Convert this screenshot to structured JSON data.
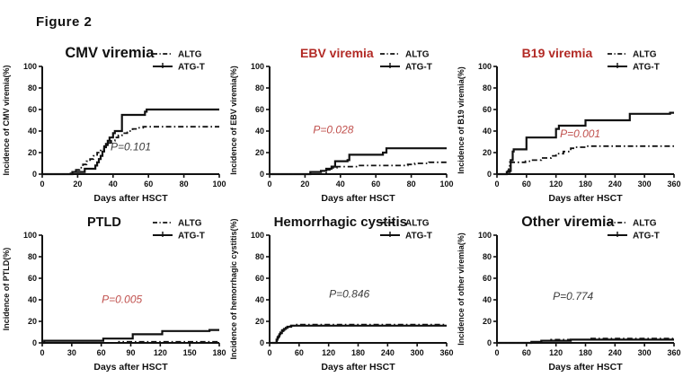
{
  "figure_label": "Figure 2",
  "legend_labels": {
    "altg": "ALTG",
    "atgt": "ATG-T"
  },
  "colors": {
    "ink": "#111111",
    "red_title": "#b22a25",
    "red_p": "#c0504d",
    "gray_p": "#3d3d3d"
  },
  "chart_data": [
    {
      "type": "line",
      "title": "CMV viremia",
      "title_color": "#111111",
      "title_size": 16.5,
      "title_fx": 0.38,
      "p_label": "P=0.101",
      "p_color": "#3d3d3d",
      "p_fx": 0.5,
      "p_fy": 0.22,
      "xlabel": "Days after HSCT",
      "ylabel": "Incidence of CMV viremia(%)",
      "xlim": [
        0,
        100
      ],
      "ylim": [
        0,
        100
      ],
      "xticks": [
        0,
        20,
        40,
        60,
        80,
        100
      ],
      "yticks": [
        0,
        20,
        40,
        60,
        80,
        100
      ],
      "series": [
        {
          "name": "ATG-T",
          "style": "solid",
          "points": [
            [
              0,
              0
            ],
            [
              16,
              0
            ],
            [
              17,
              2
            ],
            [
              23,
              2
            ],
            [
              24,
              5
            ],
            [
              29,
              5
            ],
            [
              30,
              8
            ],
            [
              31,
              11
            ],
            [
              32,
              14
            ],
            [
              33,
              17
            ],
            [
              34,
              21
            ],
            [
              35,
              25
            ],
            [
              36,
              28
            ],
            [
              37,
              31
            ],
            [
              38,
              34
            ],
            [
              40,
              38
            ],
            [
              41,
              40
            ],
            [
              44,
              40
            ],
            [
              45,
              55
            ],
            [
              57,
              55
            ],
            [
              58,
              58
            ],
            [
              59,
              60
            ],
            [
              100,
              60
            ]
          ]
        },
        {
          "name": "ALTG",
          "style": "dashed",
          "points": [
            [
              0,
              0
            ],
            [
              15,
              0
            ],
            [
              16,
              2
            ],
            [
              19,
              4
            ],
            [
              21,
              6
            ],
            [
              23,
              9
            ],
            [
              25,
              12
            ],
            [
              27,
              14
            ],
            [
              29,
              17
            ],
            [
              31,
              20
            ],
            [
              33,
              23
            ],
            [
              35,
              26
            ],
            [
              37,
              29
            ],
            [
              39,
              31
            ],
            [
              41,
              34
            ],
            [
              43,
              36
            ],
            [
              45,
              38
            ],
            [
              48,
              40
            ],
            [
              51,
              42
            ],
            [
              54,
              43
            ],
            [
              57,
              44
            ],
            [
              100,
              44
            ]
          ]
        }
      ]
    },
    {
      "type": "line",
      "title": "EBV viremia",
      "title_color": "#b22a25",
      "title_size": 14,
      "title_fx": 0.38,
      "p_label": "P=0.028",
      "p_color": "#c0504d",
      "p_fx": 0.36,
      "p_fy": 0.38,
      "xlabel": "Days after HSCT",
      "ylabel": "Incidence of EBV viremia(%)",
      "xlim": [
        0,
        100
      ],
      "ylim": [
        0,
        100
      ],
      "xticks": [
        0,
        20,
        40,
        60,
        80,
        100
      ],
      "yticks": [
        0,
        20,
        40,
        60,
        80,
        100
      ],
      "series": [
        {
          "name": "ATG-T",
          "style": "solid",
          "points": [
            [
              0,
              0
            ],
            [
              22,
              0
            ],
            [
              23,
              2
            ],
            [
              28,
              2
            ],
            [
              29,
              3
            ],
            [
              31,
              3
            ],
            [
              32,
              5
            ],
            [
              34,
              5
            ],
            [
              35,
              7
            ],
            [
              36,
              7
            ],
            [
              37,
              12
            ],
            [
              43,
              12
            ],
            [
              44,
              13
            ],
            [
              45,
              18
            ],
            [
              63,
              18
            ],
            [
              64,
              20
            ],
            [
              66,
              24
            ],
            [
              100,
              24
            ]
          ]
        },
        {
          "name": "ALTG",
          "style": "dashed",
          "points": [
            [
              0,
              0
            ],
            [
              30,
              0
            ],
            [
              32,
              4
            ],
            [
              34,
              5
            ],
            [
              36,
              6
            ],
            [
              38,
              7
            ],
            [
              48,
              7
            ],
            [
              50,
              8
            ],
            [
              74,
              8
            ],
            [
              78,
              9
            ],
            [
              82,
              10
            ],
            [
              90,
              11
            ],
            [
              100,
              11
            ]
          ]
        }
      ]
    },
    {
      "type": "line",
      "title": "B19 viremia",
      "title_color": "#b22a25",
      "title_size": 14,
      "title_fx": 0.34,
      "p_label": "P=0.001",
      "p_color": "#c0504d",
      "p_fx": 0.47,
      "p_fy": 0.34,
      "xlabel": "Days after HSCT",
      "ylabel": "Incidence of B19 viremia(%)",
      "xlim": [
        0,
        360
      ],
      "ylim": [
        0,
        100
      ],
      "xticks": [
        0,
        60,
        120,
        180,
        240,
        300,
        360
      ],
      "yticks": [
        0,
        20,
        40,
        60,
        80,
        100
      ],
      "series": [
        {
          "name": "ATG-T",
          "style": "solid",
          "points": [
            [
              0,
              0
            ],
            [
              18,
              0
            ],
            [
              20,
              2
            ],
            [
              25,
              2
            ],
            [
              26,
              3
            ],
            [
              27,
              3
            ],
            [
              28,
              13
            ],
            [
              31,
              13
            ],
            [
              32,
              21
            ],
            [
              33,
              21
            ],
            [
              34,
              23
            ],
            [
              58,
              23
            ],
            [
              60,
              34
            ],
            [
              118,
              34
            ],
            [
              120,
              42
            ],
            [
              124,
              42
            ],
            [
              126,
              45
            ],
            [
              178,
              45
            ],
            [
              180,
              50
            ],
            [
              266,
              50
            ],
            [
              270,
              56
            ],
            [
              350,
              56
            ],
            [
              352,
              57
            ],
            [
              360,
              57
            ]
          ]
        },
        {
          "name": "ALTG",
          "style": "dashed",
          "points": [
            [
              0,
              0
            ],
            [
              20,
              0
            ],
            [
              22,
              3
            ],
            [
              24,
              7
            ],
            [
              26,
              11
            ],
            [
              56,
              11
            ],
            [
              58,
              12
            ],
            [
              68,
              12
            ],
            [
              70,
              13
            ],
            [
              88,
              13
            ],
            [
              90,
              15
            ],
            [
              108,
              15
            ],
            [
              110,
              17
            ],
            [
              118,
              17
            ],
            [
              120,
              19
            ],
            [
              133,
              19
            ],
            [
              135,
              21
            ],
            [
              148,
              21
            ],
            [
              150,
              24
            ],
            [
              158,
              24
            ],
            [
              160,
              25
            ],
            [
              178,
              25
            ],
            [
              180,
              26
            ],
            [
              360,
              26
            ]
          ]
        }
      ]
    },
    {
      "type": "line",
      "title": "PTLD",
      "title_color": "#111111",
      "title_size": 14.5,
      "title_fx": 0.35,
      "p_label": "P=0.005",
      "p_color": "#c0504d",
      "p_fx": 0.45,
      "p_fy": 0.37,
      "xlabel": "Days after HSCT",
      "ylabel": "Incidence of PTLD(%)",
      "xlim": [
        0,
        180
      ],
      "ylim": [
        0,
        100
      ],
      "xticks": [
        0,
        30,
        60,
        90,
        120,
        150,
        180
      ],
      "yticks": [
        0,
        20,
        40,
        60,
        80,
        100
      ],
      "series": [
        {
          "name": "ATG-T",
          "style": "solid",
          "points": [
            [
              0,
              0
            ],
            [
              2,
              2
            ],
            [
              60,
              2
            ],
            [
              62,
              4
            ],
            [
              90,
              4
            ],
            [
              92,
              8
            ],
            [
              120,
              8
            ],
            [
              122,
              11
            ],
            [
              168,
              11
            ],
            [
              170,
              12
            ],
            [
              180,
              12
            ]
          ]
        },
        {
          "name": "ALTG",
          "style": "dashed",
          "points": [
            [
              0,
              0
            ],
            [
              76,
              0
            ],
            [
              78,
              1
            ],
            [
              180,
              1
            ]
          ]
        }
      ]
    },
    {
      "type": "line",
      "title": "Hemorrhagic cystitis",
      "title_color": "#111111",
      "title_size": 15,
      "title_fx": 0.4,
      "p_label": "P=0.846",
      "p_color": "#3d3d3d",
      "p_fx": 0.45,
      "p_fy": 0.42,
      "xlabel": "Days after HSCT",
      "ylabel": "Incidence of hemorrhagic cystitis(%)",
      "xlim": [
        0,
        360
      ],
      "ylim": [
        0,
        100
      ],
      "xticks": [
        0,
        60,
        120,
        180,
        240,
        300,
        360
      ],
      "yticks": [
        0,
        20,
        40,
        60,
        80,
        100
      ],
      "series": [
        {
          "name": "ATG-T",
          "style": "solid",
          "points": [
            [
              0,
              0
            ],
            [
              12,
              0
            ],
            [
              14,
              3
            ],
            [
              16,
              5
            ],
            [
              18,
              6
            ],
            [
              20,
              8
            ],
            [
              22,
              9
            ],
            [
              25,
              11
            ],
            [
              28,
              12
            ],
            [
              30,
              13
            ],
            [
              33,
              14
            ],
            [
              36,
              15
            ],
            [
              42,
              15
            ],
            [
              44,
              16
            ],
            [
              360,
              16
            ]
          ]
        },
        {
          "name": "ALTG",
          "style": "dashed",
          "points": [
            [
              0,
              0
            ],
            [
              13,
              0
            ],
            [
              15,
              4
            ],
            [
              17,
              6
            ],
            [
              19,
              8
            ],
            [
              22,
              10
            ],
            [
              25,
              12
            ],
            [
              29,
              13
            ],
            [
              33,
              14
            ],
            [
              37,
              15
            ],
            [
              43,
              16
            ],
            [
              50,
              17
            ],
            [
              360,
              17
            ]
          ]
        }
      ]
    },
    {
      "type": "line",
      "title": "Other viremia",
      "title_color": "#111111",
      "title_size": 16,
      "title_fx": 0.4,
      "p_label": "P=0.774",
      "p_color": "#3d3d3d",
      "p_fx": 0.43,
      "p_fy": 0.4,
      "xlabel": "Days after HSCT",
      "ylabel": "Incidence of other viremia(%)",
      "xlim": [
        0,
        360
      ],
      "ylim": [
        0,
        100
      ],
      "xticks": [
        0,
        60,
        120,
        180,
        240,
        300,
        360
      ],
      "yticks": [
        0,
        20,
        40,
        60,
        80,
        100
      ],
      "series": [
        {
          "name": "ATG-T",
          "style": "solid",
          "points": [
            [
              0,
              0
            ],
            [
              68,
              0
            ],
            [
              70,
              1
            ],
            [
              88,
              1
            ],
            [
              90,
              2
            ],
            [
              148,
              2
            ],
            [
              150,
              3
            ],
            [
              360,
              3
            ]
          ]
        },
        {
          "name": "ALTG",
          "style": "dashed",
          "points": [
            [
              0,
              0
            ],
            [
              88,
              0
            ],
            [
              90,
              2
            ],
            [
              108,
              2
            ],
            [
              110,
              3
            ],
            [
              188,
              3
            ],
            [
              190,
              4
            ],
            [
              360,
              4
            ]
          ]
        }
      ]
    }
  ]
}
